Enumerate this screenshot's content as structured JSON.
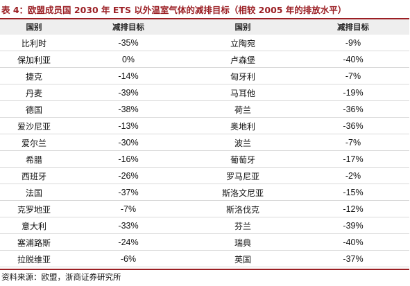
{
  "title": "表 4：欧盟成员国 2030 年 ETS 以外温室气体的减排目标（相较 2005 年的排放水平）",
  "table": {
    "headers": [
      "国别",
      "减排目标",
      "国别",
      "减排目标"
    ],
    "rows": [
      [
        "比利时",
        "-35%",
        "立陶宛",
        "-9%"
      ],
      [
        "保加利亚",
        "0%",
        "卢森堡",
        "-40%"
      ],
      [
        "捷克",
        "-14%",
        "匈牙利",
        "-7%"
      ],
      [
        "丹麦",
        "-39%",
        "马耳他",
        "-19%"
      ],
      [
        "德国",
        "-38%",
        "荷兰",
        "-36%"
      ],
      [
        "爱沙尼亚",
        "-13%",
        "奥地利",
        "-36%"
      ],
      [
        "爱尔兰",
        "-30%",
        "波兰",
        "-7%"
      ],
      [
        "希腊",
        "-16%",
        "葡萄牙",
        "-17%"
      ],
      [
        "西班牙",
        "-26%",
        "罗马尼亚",
        "-2%"
      ],
      [
        "法国",
        "-37%",
        "斯洛文尼亚",
        "-15%"
      ],
      [
        "克罗地亚",
        "-7%",
        "斯洛伐克",
        "-12%"
      ],
      [
        "意大利",
        "-33%",
        "芬兰",
        "-39%"
      ],
      [
        "塞浦路斯",
        "-24%",
        "瑞典",
        "-40%"
      ],
      [
        "拉脱维亚",
        "-6%",
        "英国",
        "-37%"
      ]
    ]
  },
  "source": "资料来源：欧盟，浙商证券研究所",
  "colors": {
    "accent": "#9b1f24",
    "header_bg": "#eeeeee",
    "row_line": "#d9d9d9"
  }
}
